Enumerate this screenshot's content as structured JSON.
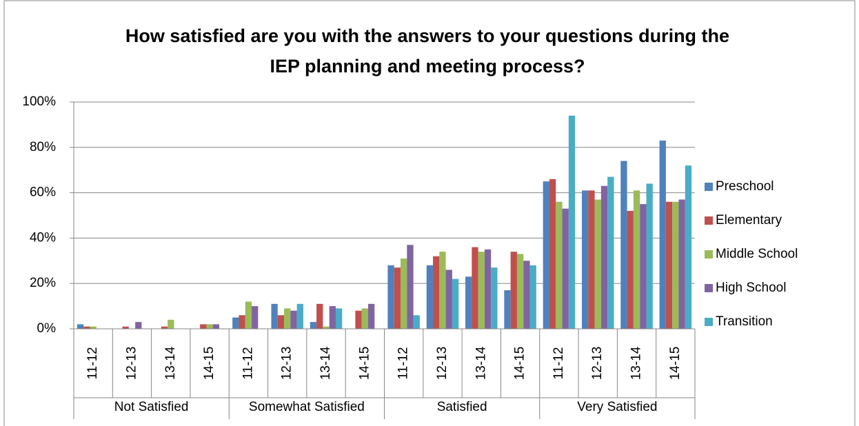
{
  "chart_data": {
    "type": "bar",
    "title": "How satisfied are you with the answers to your questions during the IEP planning and meeting process?",
    "category_groups": [
      "Not Satisfied",
      "Somewhat Satisfied",
      "Satisfied",
      "Very Satisfied"
    ],
    "categories": [
      "11-12",
      "12-13",
      "13-14",
      "14-15",
      "11-12",
      "12-13",
      "13-14",
      "14-15",
      "11-12",
      "12-13",
      "13-14",
      "14-15",
      "11-12",
      "12-13",
      "13-14",
      "14-15"
    ],
    "series": [
      {
        "name": "Preschool",
        "color": "#4f81bd",
        "values": [
          2,
          0,
          0,
          0,
          5,
          11,
          3,
          0,
          28,
          28,
          23,
          17,
          65,
          61,
          74,
          83
        ]
      },
      {
        "name": "Elementary",
        "color": "#c0504d",
        "values": [
          1,
          1,
          1,
          2,
          6,
          6,
          11,
          8,
          27,
          32,
          36,
          34,
          66,
          61,
          52,
          56
        ]
      },
      {
        "name": "Middle School",
        "color": "#9bbb59",
        "values": [
          1,
          0,
          4,
          2,
          12,
          9,
          1,
          9,
          31,
          34,
          34,
          33,
          56,
          57,
          61,
          56
        ]
      },
      {
        "name": "High School",
        "color": "#8064a2",
        "values": [
          0,
          3,
          0,
          2,
          10,
          8,
          10,
          11,
          37,
          26,
          35,
          30,
          53,
          63,
          55,
          57
        ]
      },
      {
        "name": "Transition",
        "color": "#4bacc6",
        "values": [
          0,
          0,
          0,
          0,
          0,
          11,
          9,
          0,
          6,
          22,
          27,
          28,
          94,
          67,
          64,
          72
        ]
      }
    ],
    "ylim": [
      0,
      100
    ],
    "yticks": [
      {
        "value": 0,
        "label": "0%"
      },
      {
        "value": 20,
        "label": "20%"
      },
      {
        "value": 40,
        "label": "40%"
      },
      {
        "value": 60,
        "label": "60%"
      },
      {
        "value": 80,
        "label": "80%"
      },
      {
        "value": 100,
        "label": "100%"
      }
    ],
    "grid": true,
    "legend": "right"
  }
}
